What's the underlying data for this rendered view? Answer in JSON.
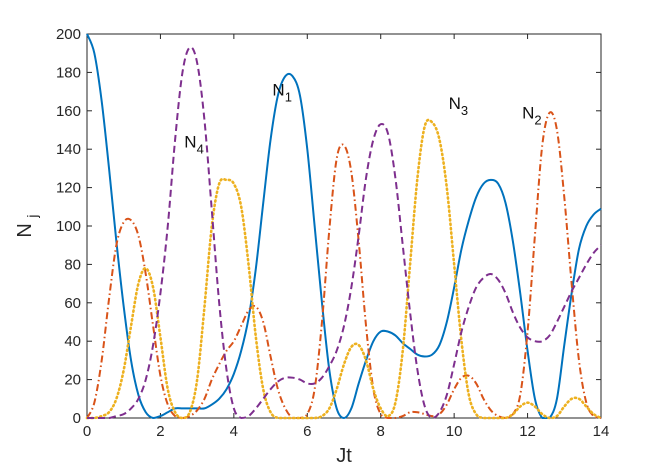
{
  "chart_data": {
    "type": "line",
    "title": "",
    "xlabel": "Jt",
    "ylabel": {
      "base": "N",
      "sub": "j"
    },
    "xlim": [
      0,
      14
    ],
    "ylim": [
      0,
      200
    ],
    "xticks": [
      0,
      2,
      4,
      6,
      8,
      10,
      12,
      14
    ],
    "yticks": [
      0,
      20,
      40,
      60,
      80,
      100,
      120,
      140,
      160,
      180,
      200
    ],
    "grid": false,
    "legend": "none",
    "series": [
      {
        "id": "n1",
        "color": "#0072BD",
        "dash": "solid",
        "x": [
          0,
          0.2,
          0.4,
          0.6,
          0.8,
          1.0,
          1.2,
          1.4,
          1.6,
          1.8,
          2.0,
          2.2,
          2.4,
          2.6,
          2.8,
          3.0,
          3.2,
          3.4,
          3.6,
          3.8,
          4.0,
          4.2,
          4.4,
          4.6,
          4.8,
          5.0,
          5.2,
          5.4,
          5.6,
          5.8,
          6.0,
          6.2,
          6.4,
          6.6,
          6.8,
          7.0,
          7.2,
          7.4,
          7.6,
          7.8,
          8.0,
          8.2,
          8.4,
          8.6,
          8.8,
          9.0,
          9.2,
          9.4,
          9.6,
          9.8,
          10.0,
          10.2,
          10.4,
          10.6,
          10.8,
          11.0,
          11.2,
          11.4,
          11.6,
          11.8,
          12.0,
          12.2,
          12.4,
          12.6,
          12.8,
          13.0,
          13.2,
          13.4,
          13.6,
          13.8,
          14.0
        ],
        "y": [
          200,
          190,
          165,
          130,
          92,
          58,
          30,
          12,
          3,
          0,
          1,
          3,
          5,
          5,
          5,
          5,
          5,
          7,
          10,
          15,
          23,
          35,
          52,
          78,
          112,
          145,
          168,
          178,
          178,
          168,
          140,
          100,
          60,
          25,
          5,
          0,
          5,
          18,
          30,
          40,
          45,
          45,
          43,
          39,
          36,
          33,
          32,
          33,
          38,
          50,
          68,
          88,
          103,
          115,
          122,
          124,
          122,
          112,
          92,
          65,
          35,
          10,
          0,
          0,
          10,
          38,
          65,
          88,
          100,
          106,
          109
        ]
      },
      {
        "id": "n2",
        "color": "#D95319",
        "dash": "dashdot",
        "x": [
          0,
          0.2,
          0.4,
          0.6,
          0.8,
          1.0,
          1.2,
          1.4,
          1.6,
          1.8,
          2.0,
          2.2,
          2.4,
          2.6,
          2.8,
          3.0,
          3.2,
          3.4,
          3.6,
          3.8,
          4.0,
          4.2,
          4.4,
          4.6,
          4.8,
          5.0,
          5.2,
          5.4,
          5.6,
          5.8,
          6.0,
          6.2,
          6.4,
          6.6,
          6.8,
          7.0,
          7.2,
          7.4,
          7.6,
          7.8,
          8.0,
          8.2,
          8.4,
          8.6,
          8.8,
          9.0,
          9.2,
          9.4,
          9.6,
          9.8,
          10.0,
          10.2,
          10.4,
          10.6,
          10.8,
          11.0,
          11.2,
          11.4,
          11.6,
          11.8,
          12.0,
          12.2,
          12.4,
          12.6,
          12.8,
          13.0,
          13.2,
          13.4,
          13.6,
          13.8,
          14.0
        ],
        "y": [
          0,
          8,
          30,
          62,
          90,
          102,
          103,
          95,
          75,
          48,
          22,
          7,
          1,
          0,
          1,
          4,
          10,
          20,
          28,
          35,
          40,
          48,
          56,
          58,
          50,
          32,
          15,
          5,
          0,
          0,
          2,
          15,
          50,
          98,
          135,
          142,
          128,
          92,
          48,
          15,
          2,
          0,
          0,
          1,
          3,
          3,
          2,
          1,
          2,
          7,
          15,
          21,
          22,
          18,
          10,
          4,
          1,
          0,
          2,
          12,
          45,
          95,
          142,
          159,
          150,
          115,
          70,
          30,
          8,
          1,
          0
        ]
      },
      {
        "id": "n3",
        "color": "#EDB120",
        "dash": "dotted",
        "x": [
          0,
          0.2,
          0.4,
          0.6,
          0.8,
          1.0,
          1.2,
          1.4,
          1.6,
          1.8,
          2.0,
          2.2,
          2.4,
          2.6,
          2.8,
          3.0,
          3.2,
          3.4,
          3.6,
          3.8,
          4.0,
          4.2,
          4.4,
          4.6,
          4.8,
          5.0,
          5.2,
          5.4,
          5.6,
          5.8,
          6.0,
          6.2,
          6.4,
          6.6,
          6.8,
          7.0,
          7.2,
          7.4,
          7.6,
          7.8,
          8.0,
          8.2,
          8.4,
          8.6,
          8.8,
          9.0,
          9.2,
          9.4,
          9.6,
          9.8,
          10.0,
          10.2,
          10.4,
          10.6,
          10.8,
          11.0,
          11.2,
          11.4,
          11.6,
          11.8,
          12.0,
          12.2,
          12.4,
          12.6,
          12.8,
          13.0,
          13.2,
          13.4,
          13.6,
          13.8,
          14.0
        ],
        "y": [
          0,
          0,
          1,
          3,
          10,
          25,
          48,
          70,
          78,
          68,
          42,
          15,
          3,
          0,
          3,
          20,
          58,
          100,
          122,
          124,
          122,
          110,
          80,
          42,
          15,
          3,
          0,
          0,
          0,
          0,
          0,
          0,
          1,
          5,
          15,
          28,
          37,
          38,
          30,
          15,
          5,
          1,
          8,
          35,
          80,
          125,
          152,
          154,
          145,
          120,
          80,
          40,
          12,
          2,
          0,
          0,
          0,
          0,
          2,
          6,
          8,
          6,
          2,
          0,
          1,
          6,
          10,
          10,
          6,
          2,
          0
        ]
      },
      {
        "id": "n4",
        "color": "#7E2F8E",
        "dash": "dashed",
        "x": [
          0,
          0.2,
          0.4,
          0.6,
          0.8,
          1.0,
          1.2,
          1.4,
          1.6,
          1.8,
          2.0,
          2.2,
          2.4,
          2.6,
          2.8,
          3.0,
          3.2,
          3.4,
          3.6,
          3.8,
          4.0,
          4.2,
          4.4,
          4.6,
          4.8,
          5.0,
          5.2,
          5.4,
          5.6,
          5.8,
          6.0,
          6.2,
          6.4,
          6.6,
          6.8,
          7.0,
          7.2,
          7.4,
          7.6,
          7.8,
          8.0,
          8.2,
          8.4,
          8.6,
          8.8,
          9.0,
          9.2,
          9.4,
          9.6,
          9.8,
          10.0,
          10.2,
          10.4,
          10.6,
          10.8,
          11.0,
          11.2,
          11.4,
          11.6,
          11.8,
          12.0,
          12.2,
          12.4,
          12.6,
          12.8,
          13.0,
          13.2,
          13.4,
          13.6,
          13.8,
          14.0
        ],
        "y": [
          0,
          0,
          0,
          0,
          1,
          2,
          5,
          10,
          20,
          38,
          65,
          100,
          145,
          180,
          193,
          185,
          155,
          108,
          60,
          25,
          5,
          0,
          1,
          5,
          10,
          15,
          19,
          21,
          21,
          20,
          18,
          18,
          21,
          27,
          35,
          48,
          68,
          95,
          125,
          145,
          153,
          148,
          125,
          90,
          55,
          25,
          6,
          0,
          3,
          12,
          28,
          45,
          58,
          68,
          73,
          75,
          72,
          65,
          55,
          47,
          42,
          40,
          40,
          43,
          50,
          58,
          66,
          73,
          80,
          86,
          90
        ]
      }
    ],
    "annotations": [
      {
        "base": "N",
        "sub": "1",
        "x": 5.05,
        "y": 168
      },
      {
        "base": "N",
        "sub": "4",
        "x": 2.65,
        "y": 141
      },
      {
        "base": "N",
        "sub": "3",
        "x": 9.85,
        "y": 161
      },
      {
        "base": "N",
        "sub": "2",
        "x": 11.85,
        "y": 156
      }
    ]
  }
}
